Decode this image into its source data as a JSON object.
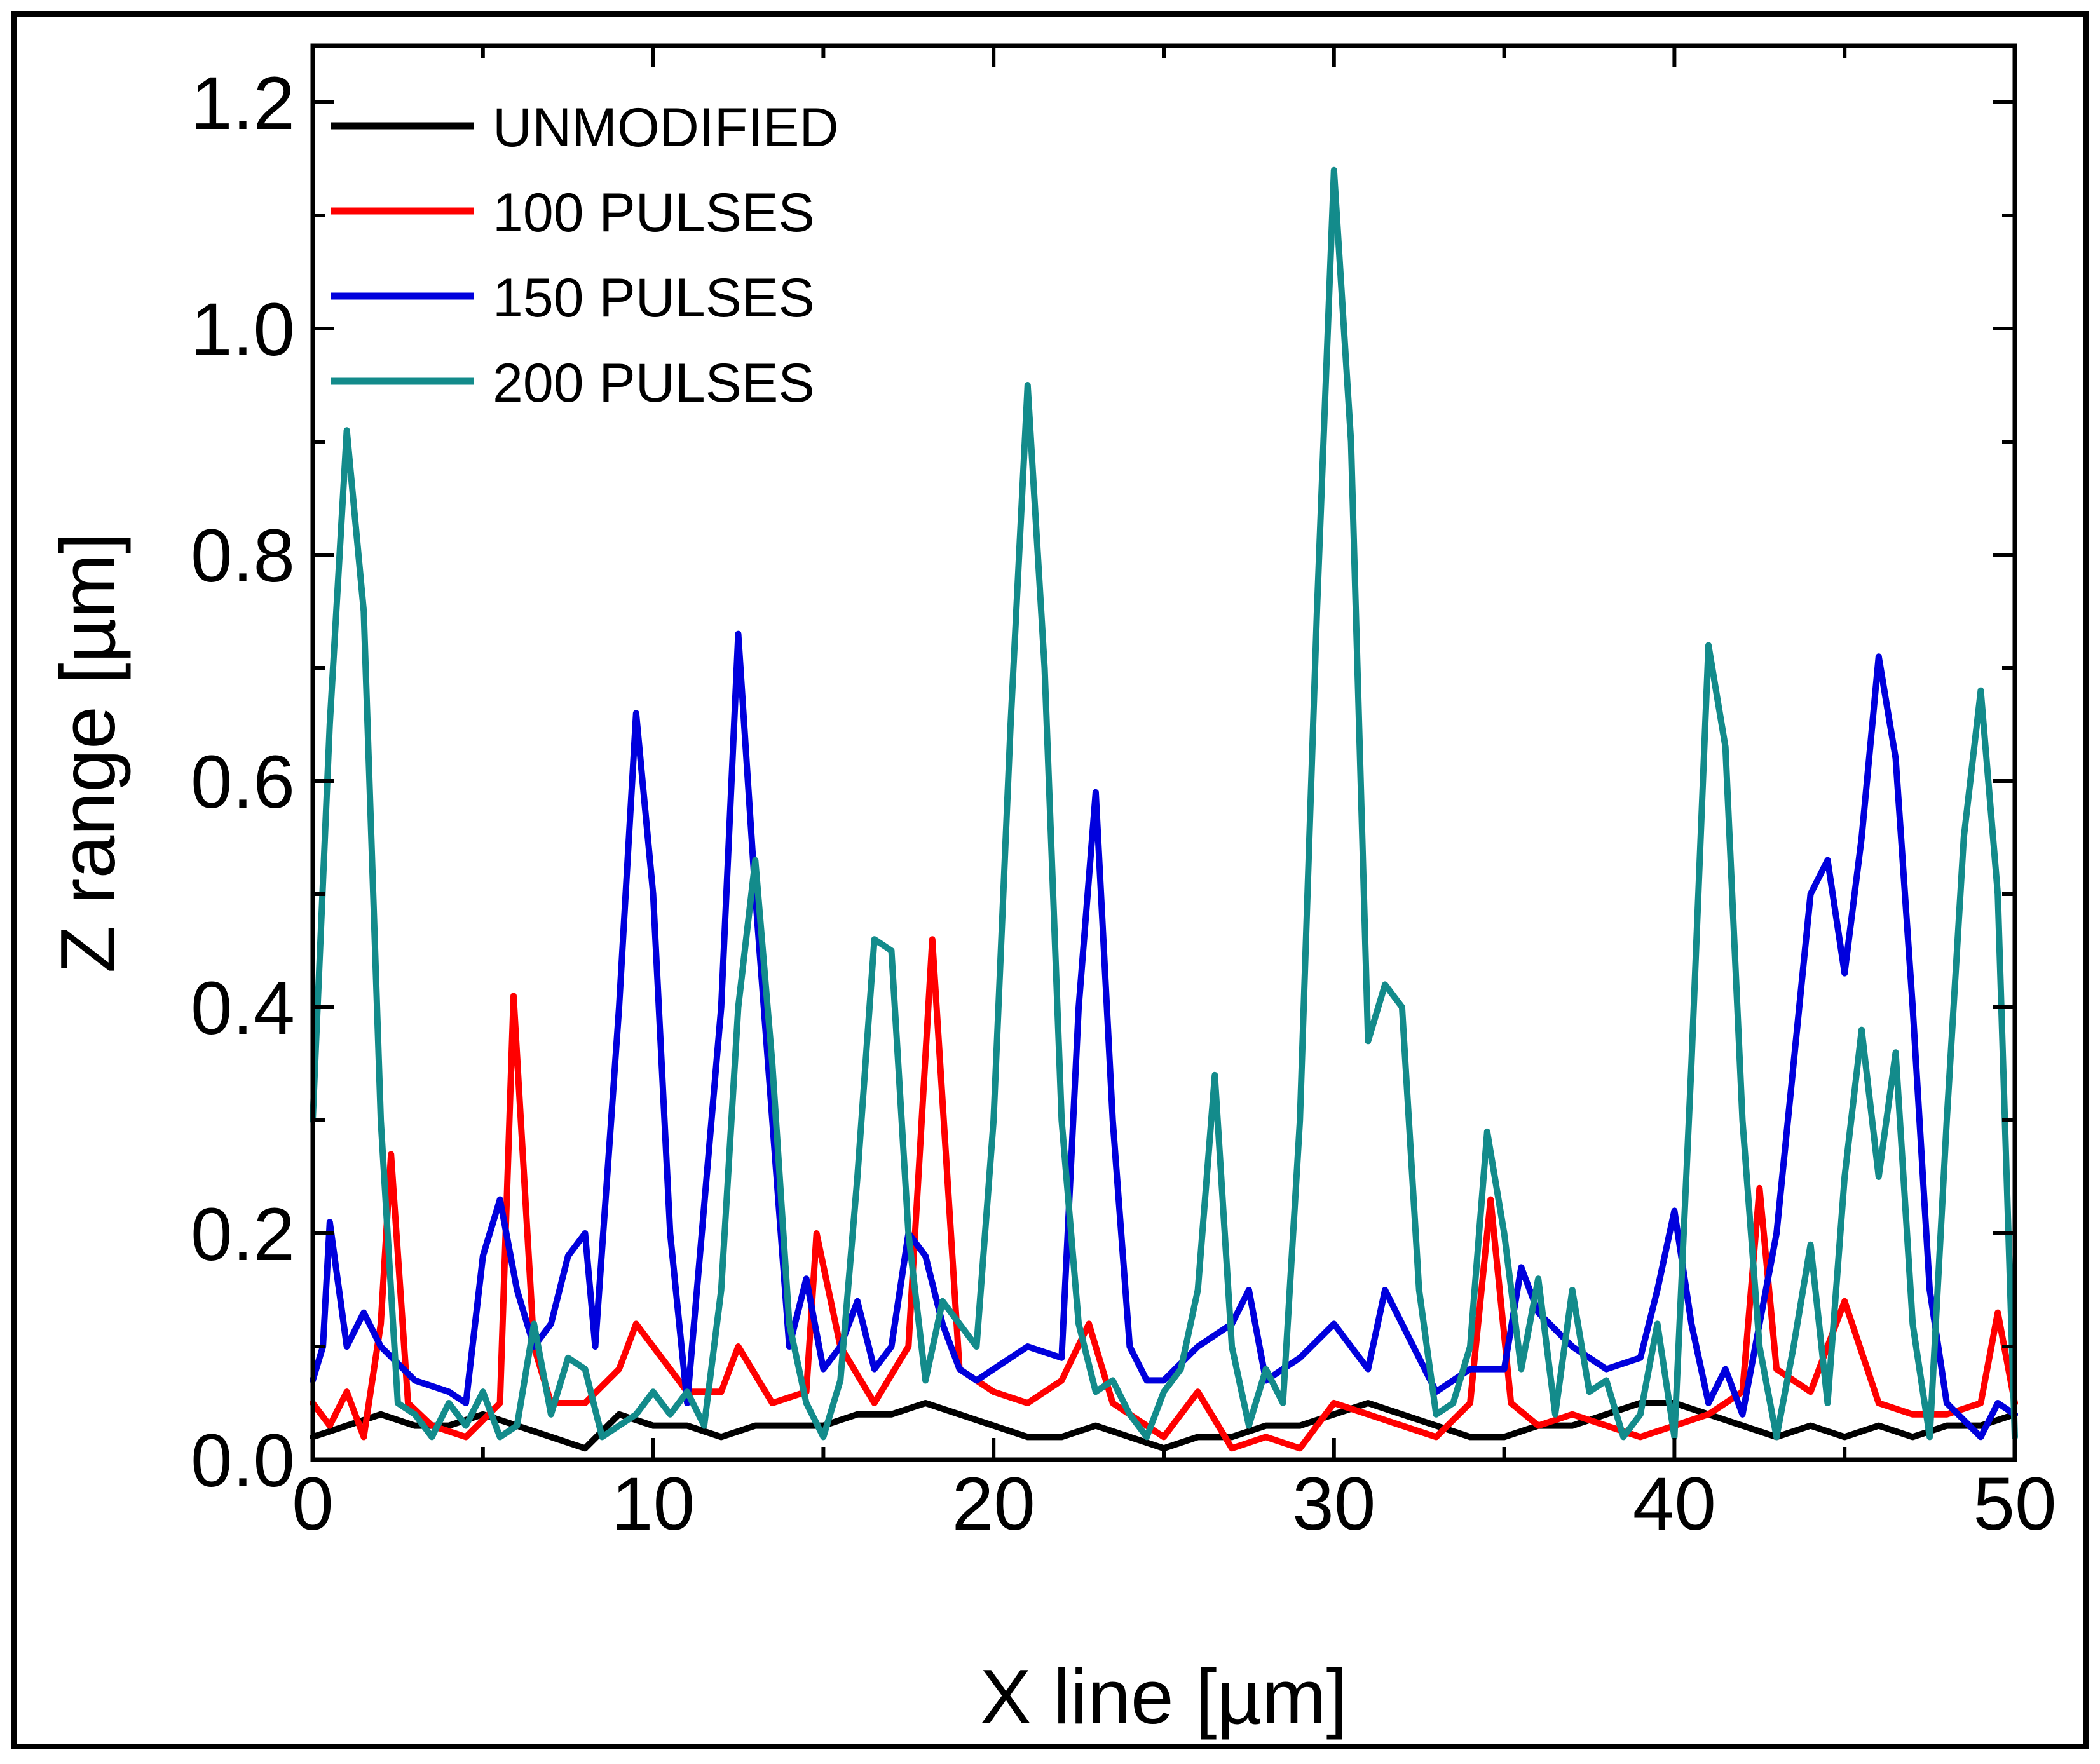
{
  "chart_data": {
    "type": "line",
    "title": "",
    "xlabel": "X line [µm]",
    "ylabel": "Z range [µm]",
    "xlim": [
      0,
      50
    ],
    "ylim": [
      0,
      1.25
    ],
    "xticks": [
      0,
      10,
      20,
      30,
      40,
      50
    ],
    "xtick_labels": [
      "0",
      "10",
      "20",
      "30",
      "40",
      "50"
    ],
    "yticks": [
      0.0,
      0.2,
      0.4,
      0.6,
      0.8,
      1.0,
      1.2
    ],
    "ytick_labels": [
      "0.0",
      "0.2",
      "0.4",
      "0.6",
      "0.8",
      "1.0",
      "1.2"
    ],
    "grid": false,
    "legend_position": "top-left",
    "series": [
      {
        "name": "UNMODIFIED",
        "color": "#000000",
        "x": [
          0,
          1,
          2,
          3,
          4,
          5,
          6,
          7,
          8,
          9,
          10,
          11,
          12,
          13,
          14,
          15,
          16,
          17,
          18,
          19,
          20,
          21,
          22,
          23,
          24,
          25,
          26,
          27,
          28,
          29,
          30,
          31,
          32,
          33,
          34,
          35,
          36,
          37,
          38,
          39,
          40,
          41,
          42,
          43,
          44,
          45,
          46,
          47,
          48,
          49,
          50
        ],
        "values": [
          0.02,
          0.03,
          0.04,
          0.03,
          0.03,
          0.04,
          0.03,
          0.02,
          0.01,
          0.04,
          0.03,
          0.03,
          0.02,
          0.03,
          0.03,
          0.03,
          0.04,
          0.04,
          0.05,
          0.04,
          0.03,
          0.02,
          0.02,
          0.03,
          0.02,
          0.01,
          0.02,
          0.02,
          0.03,
          0.03,
          0.04,
          0.05,
          0.04,
          0.03,
          0.02,
          0.02,
          0.03,
          0.03,
          0.04,
          0.05,
          0.05,
          0.04,
          0.03,
          0.02,
          0.03,
          0.02,
          0.03,
          0.02,
          0.03,
          0.03,
          0.04
        ]
      },
      {
        "name": "100 PULSES",
        "color": "#ff0000",
        "x": [
          0,
          0.5,
          1,
          1.5,
          2,
          2.3,
          2.8,
          3.5,
          4.5,
          5.5,
          5.9,
          6.5,
          7,
          8,
          9,
          9.5,
          10,
          11,
          12,
          12.5,
          13.5,
          14.5,
          14.8,
          15.5,
          16.5,
          17.5,
          18.2,
          19,
          20,
          21,
          22,
          22.8,
          23.5,
          24.5,
          25,
          26,
          27,
          28,
          29,
          30,
          31,
          32,
          33,
          34,
          34.6,
          35.2,
          36,
          37,
          38,
          39,
          40,
          41,
          42,
          42.5,
          43,
          44,
          45,
          46,
          47,
          48,
          49,
          49.5,
          50
        ],
        "values": [
          0.05,
          0.03,
          0.06,
          0.02,
          0.12,
          0.27,
          0.05,
          0.03,
          0.02,
          0.05,
          0.41,
          0.1,
          0.05,
          0.05,
          0.08,
          0.12,
          0.1,
          0.06,
          0.06,
          0.1,
          0.05,
          0.06,
          0.2,
          0.1,
          0.05,
          0.1,
          0.46,
          0.08,
          0.06,
          0.05,
          0.07,
          0.12,
          0.05,
          0.03,
          0.02,
          0.06,
          0.01,
          0.02,
          0.01,
          0.05,
          0.04,
          0.03,
          0.02,
          0.05,
          0.23,
          0.05,
          0.03,
          0.04,
          0.03,
          0.02,
          0.03,
          0.04,
          0.06,
          0.24,
          0.08,
          0.06,
          0.14,
          0.05,
          0.04,
          0.04,
          0.05,
          0.13,
          0.05
        ]
      },
      {
        "name": "150 PULSES",
        "color": "#0000dd",
        "x": [
          0,
          0.3,
          0.5,
          1,
          1.5,
          2,
          3,
          4,
          4.5,
          5,
          5.5,
          6,
          6.5,
          7,
          7.5,
          8,
          8.3,
          9,
          9.5,
          10,
          10.5,
          11,
          12,
          12.5,
          13,
          13.5,
          14,
          14.5,
          15,
          15.5,
          16,
          16.5,
          17,
          17.5,
          18,
          18.5,
          19,
          19.5,
          20,
          21,
          22,
          22.5,
          23,
          23.5,
          24,
          24.5,
          25,
          26,
          27,
          27.5,
          28,
          29,
          30,
          31,
          31.5,
          32,
          33,
          34,
          35,
          35.5,
          36,
          37,
          38,
          39,
          39.5,
          40,
          40.5,
          41,
          41.5,
          42,
          43,
          43.5,
          44,
          44.5,
          45,
          45.5,
          46,
          46.5,
          47,
          47.5,
          48,
          49,
          49.5,
          50
        ],
        "values": [
          0.07,
          0.1,
          0.21,
          0.1,
          0.13,
          0.1,
          0.07,
          0.06,
          0.05,
          0.18,
          0.23,
          0.15,
          0.1,
          0.12,
          0.18,
          0.2,
          0.1,
          0.4,
          0.66,
          0.5,
          0.2,
          0.05,
          0.4,
          0.73,
          0.5,
          0.3,
          0.1,
          0.16,
          0.08,
          0.1,
          0.14,
          0.08,
          0.1,
          0.2,
          0.18,
          0.12,
          0.08,
          0.07,
          0.08,
          0.1,
          0.09,
          0.4,
          0.59,
          0.3,
          0.1,
          0.07,
          0.07,
          0.1,
          0.12,
          0.15,
          0.07,
          0.09,
          0.12,
          0.08,
          0.15,
          0.12,
          0.06,
          0.08,
          0.08,
          0.17,
          0.13,
          0.1,
          0.08,
          0.09,
          0.15,
          0.22,
          0.12,
          0.05,
          0.08,
          0.04,
          0.2,
          0.35,
          0.5,
          0.53,
          0.43,
          0.55,
          0.71,
          0.62,
          0.4,
          0.15,
          0.05,
          0.02,
          0.05,
          0.04
        ]
      },
      {
        "name": "200 PULSES",
        "color": "#138b8b",
        "x": [
          0,
          0.5,
          1,
          1.5,
          2,
          2.5,
          3,
          3.5,
          4,
          4.5,
          5,
          5.5,
          6,
          6.5,
          7,
          7.5,
          8,
          8.5,
          9,
          9.5,
          10,
          10.5,
          11,
          11.5,
          12,
          12.5,
          13,
          13.5,
          14,
          14.5,
          15,
          15.5,
          16,
          16.5,
          17,
          17.5,
          18,
          18.5,
          19,
          19.5,
          20,
          20.5,
          21,
          21.5,
          22,
          22.5,
          23,
          23.5,
          24,
          24.5,
          25,
          25.5,
          26,
          26.5,
          27,
          27.5,
          28,
          28.5,
          29,
          29.5,
          30,
          30.5,
          31,
          31.5,
          32,
          32.5,
          33,
          33.5,
          34,
          34.5,
          35,
          35.5,
          36,
          36.5,
          37,
          37.5,
          38,
          38.5,
          39,
          39.5,
          40,
          40.5,
          41,
          41.5,
          42,
          42.5,
          43,
          43.5,
          44,
          44.5,
          45,
          45.5,
          46,
          46.5,
          47,
          47.5,
          48,
          48.5,
          49,
          49.5,
          50
        ],
        "values": [
          0.3,
          0.65,
          0.91,
          0.75,
          0.3,
          0.05,
          0.04,
          0.02,
          0.05,
          0.03,
          0.06,
          0.02,
          0.03,
          0.12,
          0.04,
          0.09,
          0.08,
          0.02,
          0.03,
          0.04,
          0.06,
          0.04,
          0.06,
          0.03,
          0.15,
          0.4,
          0.53,
          0.35,
          0.12,
          0.05,
          0.02,
          0.07,
          0.25,
          0.46,
          0.45,
          0.2,
          0.07,
          0.14,
          0.12,
          0.1,
          0.3,
          0.65,
          0.95,
          0.7,
          0.3,
          0.12,
          0.06,
          0.07,
          0.04,
          0.02,
          0.06,
          0.08,
          0.15,
          0.34,
          0.1,
          0.03,
          0.08,
          0.05,
          0.3,
          0.75,
          1.14,
          0.9,
          0.37,
          0.42,
          0.4,
          0.15,
          0.04,
          0.05,
          0.1,
          0.29,
          0.2,
          0.08,
          0.16,
          0.04,
          0.15,
          0.06,
          0.07,
          0.02,
          0.04,
          0.12,
          0.02,
          0.35,
          0.72,
          0.63,
          0.3,
          0.1,
          0.02,
          0.1,
          0.19,
          0.05,
          0.25,
          0.38,
          0.25,
          0.36,
          0.12,
          0.02,
          0.3,
          0.55,
          0.68,
          0.5,
          0.02
        ]
      }
    ]
  }
}
